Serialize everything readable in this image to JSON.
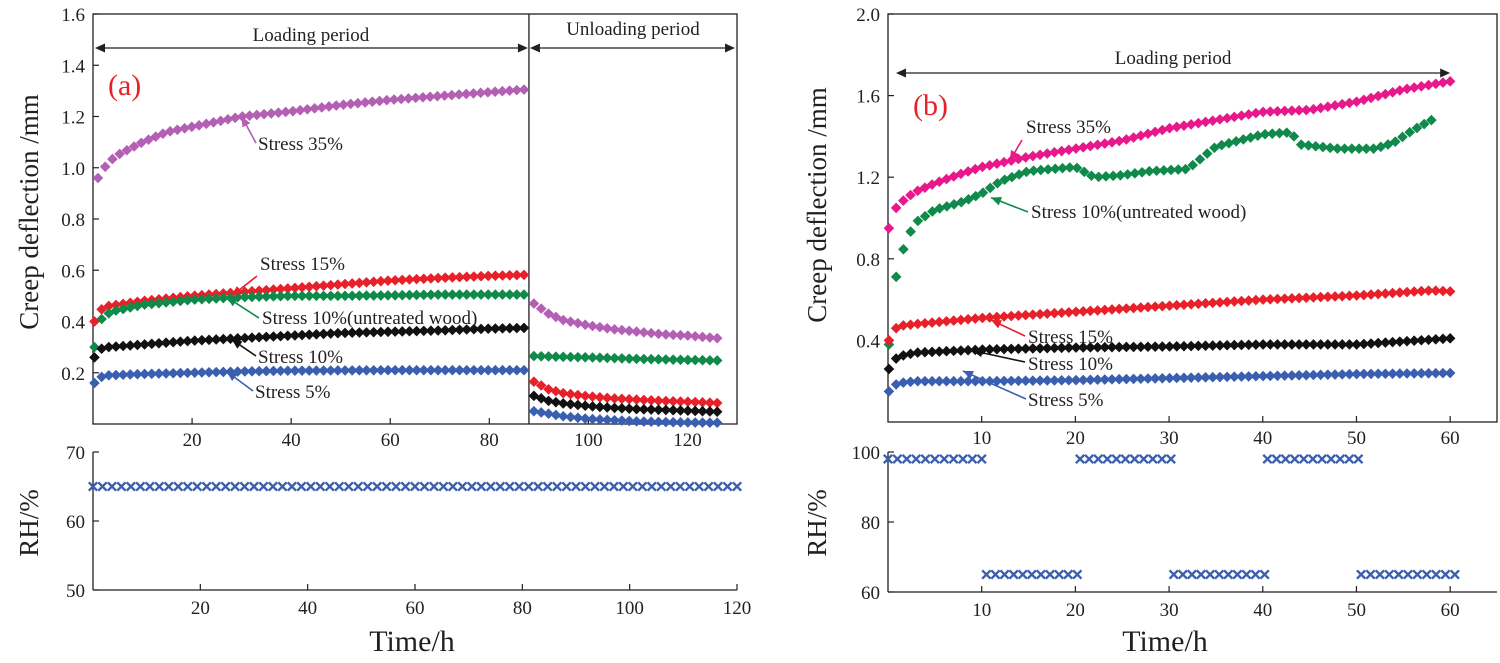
{
  "colors": {
    "purple": "#b35fb4",
    "red": "#e8202a",
    "green": "#0f8a4a",
    "black": "#111111",
    "blue": "#3b5fb0",
    "magenta": "#e8178a",
    "label_red": "#e8202a",
    "axis": "#231f20"
  },
  "chart_data": [
    {
      "id": "a",
      "type": "scatter",
      "panel_label": "(a)",
      "ylabel": "Creep deflection /mm",
      "xlim": [
        0,
        130
      ],
      "ylim": [
        0,
        1.6
      ],
      "yticks": [
        "0.2",
        "0.4",
        "0.6",
        "0.8",
        "1.0",
        "1.2",
        "1.4",
        "1.6"
      ],
      "xticks": [
        "20",
        "40",
        "60",
        "80",
        "100",
        "120"
      ],
      "periods": [
        {
          "label": "Loading period",
          "from": 0,
          "to": 88
        },
        {
          "label": "Unloading period",
          "from": 88,
          "to": 130
        }
      ],
      "series": [
        {
          "name": "Stress 35%",
          "color": "purple",
          "marker": "diamond",
          "load": [
            [
              1,
              0.96
            ],
            [
              3,
              1.02
            ],
            [
              5,
              1.05
            ],
            [
              10,
              1.1
            ],
            [
              15,
              1.14
            ],
            [
              20,
              1.16
            ],
            [
              25,
              1.18
            ],
            [
              30,
              1.2
            ],
            [
              40,
              1.22
            ],
            [
              50,
              1.245
            ],
            [
              60,
              1.265
            ],
            [
              70,
              1.28
            ],
            [
              80,
              1.295
            ],
            [
              87,
              1.305
            ]
          ],
          "unload": [
            [
              89,
              0.47
            ],
            [
              92,
              0.43
            ],
            [
              95,
              0.405
            ],
            [
              100,
              0.385
            ],
            [
              105,
              0.37
            ],
            [
              110,
              0.36
            ],
            [
              115,
              0.35
            ],
            [
              120,
              0.345
            ],
            [
              126,
              0.335
            ]
          ]
        },
        {
          "name": "Stress 15%",
          "color": "red",
          "marker": "diamond",
          "load": [
            [
              0.3,
              0.4
            ],
            [
              1,
              0.44
            ],
            [
              3,
              0.46
            ],
            [
              10,
              0.48
            ],
            [
              20,
              0.5
            ],
            [
              30,
              0.515
            ],
            [
              40,
              0.53
            ],
            [
              50,
              0.545
            ],
            [
              60,
              0.56
            ],
            [
              70,
              0.57
            ],
            [
              80,
              0.578
            ],
            [
              87,
              0.582
            ]
          ],
          "unload": [
            [
              89,
              0.165
            ],
            [
              92,
              0.135
            ],
            [
              95,
              0.12
            ],
            [
              100,
              0.108
            ],
            [
              105,
              0.1
            ],
            [
              110,
              0.095
            ],
            [
              115,
              0.09
            ],
            [
              120,
              0.087
            ],
            [
              126,
              0.082
            ]
          ]
        },
        {
          "name": "Stress 10%(untreated wood)",
          "color": "green",
          "marker": "diamond",
          "load": [
            [
              0.3,
              0.3
            ],
            [
              1,
              0.38
            ],
            [
              2,
              0.42
            ],
            [
              4,
              0.44
            ],
            [
              10,
              0.465
            ],
            [
              20,
              0.485
            ],
            [
              30,
              0.495
            ],
            [
              40,
              0.5
            ],
            [
              50,
              0.5
            ],
            [
              60,
              0.502
            ],
            [
              70,
              0.505
            ],
            [
              80,
              0.505
            ],
            [
              87,
              0.505
            ]
          ],
          "unload": [
            [
              89,
              0.265
            ],
            [
              95,
              0.262
            ],
            [
              100,
              0.26
            ],
            [
              105,
              0.257
            ],
            [
              110,
              0.254
            ],
            [
              115,
              0.252
            ],
            [
              120,
              0.25
            ],
            [
              126,
              0.248
            ]
          ]
        },
        {
          "name": "Stress 10%",
          "color": "black",
          "marker": "diamond",
          "load": [
            [
              0.3,
              0.26
            ],
            [
              1,
              0.29
            ],
            [
              3,
              0.3
            ],
            [
              10,
              0.31
            ],
            [
              20,
              0.325
            ],
            [
              30,
              0.335
            ],
            [
              40,
              0.345
            ],
            [
              50,
              0.355
            ],
            [
              60,
              0.36
            ],
            [
              70,
              0.365
            ],
            [
              80,
              0.372
            ],
            [
              87,
              0.375
            ]
          ],
          "unload": [
            [
              89,
              0.11
            ],
            [
              92,
              0.09
            ],
            [
              95,
              0.08
            ],
            [
              100,
              0.07
            ],
            [
              105,
              0.063
            ],
            [
              110,
              0.058
            ],
            [
              115,
              0.055
            ],
            [
              120,
              0.052
            ],
            [
              126,
              0.048
            ]
          ]
        },
        {
          "name": "Stress 5%",
          "color": "blue",
          "marker": "diamond",
          "load": [
            [
              0.3,
              0.16
            ],
            [
              1,
              0.18
            ],
            [
              3,
              0.19
            ],
            [
              10,
              0.195
            ],
            [
              20,
              0.2
            ],
            [
              30,
              0.205
            ],
            [
              40,
              0.208
            ],
            [
              50,
              0.209
            ],
            [
              60,
              0.21
            ],
            [
              70,
              0.21
            ],
            [
              80,
              0.21
            ],
            [
              87,
              0.21
            ]
          ],
          "unload": [
            [
              89,
              0.05
            ],
            [
              92,
              0.04
            ],
            [
              95,
              0.03
            ],
            [
              100,
              0.02
            ],
            [
              105,
              0.015
            ],
            [
              110,
              0.01
            ],
            [
              115,
              0.008
            ],
            [
              120,
              0.006
            ],
            [
              126,
              0.005
            ]
          ]
        }
      ],
      "annotations": [
        {
          "text": "Stress 35%",
          "series": 0,
          "target": [
            30,
            1.2
          ]
        },
        {
          "text": "Stress 15%",
          "series": 1,
          "target": [
            28,
            0.5
          ]
        },
        {
          "text": "Stress 10%(untreated wood)",
          "series": 2,
          "target": [
            27,
            0.495
          ]
        },
        {
          "text": "Stress 10%",
          "series": 3,
          "target": [
            28,
            0.33
          ]
        },
        {
          "text": "Stress 5%",
          "series": 4,
          "target": [
            27,
            0.205
          ]
        }
      ],
      "rh": {
        "ylabel": "RH/%",
        "xlabel": "Time/h",
        "xlim": [
          0,
          120
        ],
        "ylim": [
          50,
          70
        ],
        "yticks": [
          "50",
          "60",
          "70"
        ],
        "xticks": [
          "20",
          "40",
          "60",
          "80",
          "100",
          "120"
        ],
        "color": "blue",
        "marker": "x",
        "segments": [
          {
            "from": 0,
            "to": 120,
            "value": 65
          }
        ]
      }
    },
    {
      "id": "b",
      "type": "scatter",
      "panel_label": "(b)",
      "ylabel": "Creep deflection /mm",
      "xlim": [
        0,
        65
      ],
      "ylim": [
        0,
        2.0
      ],
      "yticks": [
        "0.4",
        "0.8",
        "1.2",
        "1.6",
        "2.0"
      ],
      "xticks": [
        "10",
        "20",
        "30",
        "40",
        "50",
        "60"
      ],
      "periods": [
        {
          "label": "Loading period",
          "from": 0,
          "to": 60
        }
      ],
      "series": [
        {
          "name": "Stress 35%",
          "color": "magenta",
          "marker": "diamond",
          "points": [
            [
              0.1,
              0.95
            ],
            [
              0.5,
              1.02
            ],
            [
              1,
              1.06
            ],
            [
              2,
              1.1
            ],
            [
              3,
              1.13
            ],
            [
              5,
              1.17
            ],
            [
              8,
              1.22
            ],
            [
              10,
              1.25
            ],
            [
              15,
              1.3
            ],
            [
              20,
              1.34
            ],
            [
              25,
              1.38
            ],
            [
              30,
              1.44
            ],
            [
              35,
              1.48
            ],
            [
              40,
              1.52
            ],
            [
              45,
              1.53
            ],
            [
              50,
              1.57
            ],
            [
              55,
              1.63
            ],
            [
              60,
              1.67
            ]
          ]
        },
        {
          "name": "Stress 10%(untreated wood)",
          "color": "green",
          "marker": "diamond",
          "points": [
            [
              0.1,
              0.38
            ],
            [
              0.5,
              0.6
            ],
            [
              1,
              0.75
            ],
            [
              2,
              0.9
            ],
            [
              3,
              0.98
            ],
            [
              5,
              1.04
            ],
            [
              8,
              1.08
            ],
            [
              10,
              1.12
            ],
            [
              12,
              1.18
            ],
            [
              15,
              1.23
            ],
            [
              20,
              1.25
            ],
            [
              22,
              1.2
            ],
            [
              25,
              1.21
            ],
            [
              28,
              1.23
            ],
            [
              32,
              1.24
            ],
            [
              35,
              1.35
            ],
            [
              40,
              1.41
            ],
            [
              43,
              1.42
            ],
            [
              44,
              1.36
            ],
            [
              48,
              1.34
            ],
            [
              52,
              1.34
            ],
            [
              54,
              1.37
            ],
            [
              56,
              1.43
            ],
            [
              58,
              1.48
            ]
          ]
        },
        {
          "name": "Stress 15%",
          "color": "red",
          "marker": "diamond",
          "points": [
            [
              0.1,
              0.4
            ],
            [
              1,
              0.47
            ],
            [
              3,
              0.48
            ],
            [
              10,
              0.51
            ],
            [
              20,
              0.54
            ],
            [
              30,
              0.57
            ],
            [
              40,
              0.6
            ],
            [
              50,
              0.62
            ],
            [
              58,
              0.645
            ],
            [
              60,
              0.64
            ]
          ]
        },
        {
          "name": "Stress 10%",
          "color": "black",
          "marker": "diamond",
          "points": [
            [
              0.1,
              0.26
            ],
            [
              1,
              0.32
            ],
            [
              3,
              0.34
            ],
            [
              10,
              0.355
            ],
            [
              20,
              0.365
            ],
            [
              30,
              0.37
            ],
            [
              40,
              0.38
            ],
            [
              50,
              0.38
            ],
            [
              60,
              0.41
            ]
          ]
        },
        {
          "name": "Stress 5%",
          "color": "blue",
          "marker": "diamond",
          "points": [
            [
              0.1,
              0.15
            ],
            [
              1,
              0.19
            ],
            [
              3,
              0.2
            ],
            [
              10,
              0.2
            ],
            [
              20,
              0.205
            ],
            [
              30,
              0.215
            ],
            [
              40,
              0.225
            ],
            [
              50,
              0.235
            ],
            [
              60,
              0.24
            ]
          ]
        }
      ],
      "annotations": [
        {
          "text": "Stress 35%",
          "series": 0,
          "target": [
            13,
            1.28
          ]
        },
        {
          "text": "Stress 10%(untreated wood)",
          "series": 1,
          "target": [
            11,
            1.1
          ]
        },
        {
          "text": "Stress 15%",
          "series": 2,
          "target": [
            11,
            0.5
          ]
        },
        {
          "text": "Stress 10%",
          "series": 3,
          "target": [
            9,
            0.35
          ]
        },
        {
          "text": "Stress 5%",
          "series": 4,
          "target": [
            8,
            0.25
          ]
        }
      ],
      "rh": {
        "ylabel": "RH/%",
        "xlabel": "Time/h",
        "xlim": [
          0,
          65
        ],
        "ylim": [
          60,
          100
        ],
        "yticks": [
          "60",
          "80",
          "100"
        ],
        "xticks": [
          "10",
          "20",
          "30",
          "40",
          "50",
          "60"
        ],
        "color": "blue",
        "marker": "x",
        "segments": [
          {
            "from": 0,
            "to": 10,
            "value": 98
          },
          {
            "from": 10.5,
            "to": 20.2,
            "value": 65
          },
          {
            "from": 20.5,
            "to": 30.2,
            "value": 98
          },
          {
            "from": 30.5,
            "to": 40.2,
            "value": 65
          },
          {
            "from": 40.5,
            "to": 50.2,
            "value": 98
          },
          {
            "from": 50.5,
            "to": 60.5,
            "value": 65
          }
        ]
      }
    }
  ]
}
